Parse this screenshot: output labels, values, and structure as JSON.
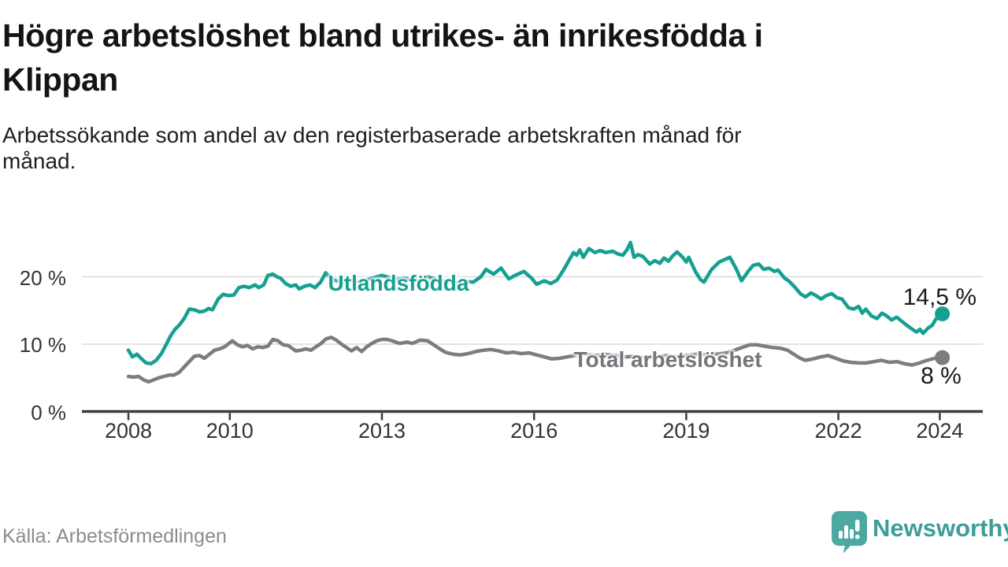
{
  "title": "Högre arbetslöshet bland utrikes- än inrikesfödda i Klippan",
  "title_lines": [
    "Högre arbetslöshet bland utrikes- än inrikesfödda i",
    "Klippan"
  ],
  "subtitle": "Arbetssökande som andel av den registerbaserade arbetskraften månad för månad.",
  "subtitle_lines": [
    "Arbetssökande som andel av den registerbaserade arbetskraften månad för",
    "månad."
  ],
  "source": "Källa: Arbetsförmedlingen",
  "branding": {
    "name": "Newsworthy",
    "bubble_color": "#4ca8a1",
    "text_color": "#3e9d98"
  },
  "colors": {
    "background": "#ffffff",
    "gridline": "#dadada",
    "axis": "#3b3b3b",
    "title": "#141414",
    "tick_label": "#333333"
  },
  "chart_data": {
    "type": "line",
    "title": "Högre arbetslöshet bland utrikes- än inrikesfödda i Klippan",
    "xlabel": "",
    "ylabel": "",
    "unit": "%",
    "x_axis": {
      "ticks": [
        2008,
        2010,
        2013,
        2016,
        2019,
        2022,
        2024
      ],
      "range": [
        2007.1,
        2024.85
      ]
    },
    "y_axis": {
      "ticks": [
        0,
        10,
        20
      ],
      "tick_labels": [
        "0 %",
        "10 %",
        "20 %"
      ],
      "range": [
        0,
        26
      ],
      "grid": true
    },
    "legend_position": "inline-labels",
    "series": [
      {
        "name": "Utlandsfödda",
        "color": "#16a091",
        "label_color": "#16a091",
        "end_label": "14,5 %",
        "end_value": 14.5,
        "points": [
          [
            2008.0,
            9.1
          ],
          [
            2008.08,
            8.1
          ],
          [
            2008.17,
            8.5
          ],
          [
            2008.25,
            7.9
          ],
          [
            2008.35,
            7.2
          ],
          [
            2008.45,
            7.1
          ],
          [
            2008.55,
            7.6
          ],
          [
            2008.65,
            8.6
          ],
          [
            2008.75,
            10.0
          ],
          [
            2008.83,
            11.2
          ],
          [
            2008.92,
            12.2
          ],
          [
            2009.0,
            12.8
          ],
          [
            2009.1,
            13.8
          ],
          [
            2009.2,
            15.2
          ],
          [
            2009.3,
            15.1
          ],
          [
            2009.4,
            14.8
          ],
          [
            2009.5,
            14.9
          ],
          [
            2009.58,
            15.3
          ],
          [
            2009.66,
            15.1
          ],
          [
            2009.77,
            16.7
          ],
          [
            2009.87,
            17.4
          ],
          [
            2009.97,
            17.2
          ],
          [
            2010.08,
            17.3
          ],
          [
            2010.18,
            18.4
          ],
          [
            2010.28,
            18.6
          ],
          [
            2010.38,
            18.4
          ],
          [
            2010.5,
            18.8
          ],
          [
            2010.57,
            18.4
          ],
          [
            2010.67,
            18.8
          ],
          [
            2010.75,
            20.2
          ],
          [
            2010.85,
            20.4
          ],
          [
            2010.93,
            20.0
          ],
          [
            2011.0,
            19.8
          ],
          [
            2011.1,
            19.0
          ],
          [
            2011.2,
            18.6
          ],
          [
            2011.3,
            18.8
          ],
          [
            2011.37,
            18.2
          ],
          [
            2011.47,
            18.6
          ],
          [
            2011.58,
            18.8
          ],
          [
            2011.68,
            18.4
          ],
          [
            2011.79,
            19.2
          ],
          [
            2011.89,
            20.6
          ],
          [
            2011.99,
            19.8
          ],
          [
            2012.1,
            19.4
          ],
          [
            2012.25,
            19.1
          ],
          [
            2012.4,
            19.5
          ],
          [
            2012.55,
            19.2
          ],
          [
            2012.7,
            19.5
          ],
          [
            2012.85,
            19.9
          ],
          [
            2013.0,
            20.2
          ],
          [
            2013.15,
            19.9
          ],
          [
            2013.3,
            19.6
          ],
          [
            2013.45,
            19.8
          ],
          [
            2013.6,
            19.5
          ],
          [
            2013.75,
            19.4
          ],
          [
            2013.9,
            20.0
          ],
          [
            2014.05,
            19.7
          ],
          [
            2014.2,
            19.4
          ],
          [
            2014.35,
            19.2
          ],
          [
            2014.5,
            19.1
          ],
          [
            2014.65,
            19.3
          ],
          [
            2014.8,
            19.2
          ],
          [
            2014.95,
            20.0
          ],
          [
            2015.05,
            21.1
          ],
          [
            2015.2,
            20.4
          ],
          [
            2015.35,
            21.3
          ],
          [
            2015.5,
            19.7
          ],
          [
            2015.65,
            20.3
          ],
          [
            2015.8,
            20.8
          ],
          [
            2015.95,
            19.8
          ],
          [
            2016.05,
            18.9
          ],
          [
            2016.2,
            19.4
          ],
          [
            2016.33,
            19.0
          ],
          [
            2016.45,
            19.5
          ],
          [
            2016.58,
            21.0
          ],
          [
            2016.7,
            22.6
          ],
          [
            2016.78,
            23.6
          ],
          [
            2016.84,
            23.2
          ],
          [
            2016.9,
            24.0
          ],
          [
            2016.97,
            22.9
          ],
          [
            2017.08,
            24.2
          ],
          [
            2017.2,
            23.6
          ],
          [
            2017.3,
            23.9
          ],
          [
            2017.42,
            23.6
          ],
          [
            2017.55,
            23.8
          ],
          [
            2017.65,
            23.4
          ],
          [
            2017.75,
            23.2
          ],
          [
            2017.83,
            24.0
          ],
          [
            2017.9,
            25.1
          ],
          [
            2017.97,
            22.9
          ],
          [
            2018.05,
            23.3
          ],
          [
            2018.15,
            23.0
          ],
          [
            2018.28,
            21.9
          ],
          [
            2018.38,
            22.4
          ],
          [
            2018.48,
            22.0
          ],
          [
            2018.56,
            22.8
          ],
          [
            2018.65,
            22.3
          ],
          [
            2018.72,
            23.0
          ],
          [
            2018.82,
            23.7
          ],
          [
            2018.93,
            22.9
          ],
          [
            2019.0,
            22.2
          ],
          [
            2019.05,
            22.9
          ],
          [
            2019.18,
            20.8
          ],
          [
            2019.28,
            19.6
          ],
          [
            2019.35,
            19.2
          ],
          [
            2019.5,
            21.1
          ],
          [
            2019.65,
            22.2
          ],
          [
            2019.86,
            22.9
          ],
          [
            2019.99,
            21.1
          ],
          [
            2020.09,
            19.4
          ],
          [
            2020.22,
            20.8
          ],
          [
            2020.32,
            21.7
          ],
          [
            2020.43,
            21.9
          ],
          [
            2020.53,
            21.1
          ],
          [
            2020.63,
            21.3
          ],
          [
            2020.74,
            20.8
          ],
          [
            2020.81,
            21.0
          ],
          [
            2020.94,
            19.8
          ],
          [
            2021.02,
            19.4
          ],
          [
            2021.15,
            18.4
          ],
          [
            2021.25,
            17.5
          ],
          [
            2021.35,
            17.0
          ],
          [
            2021.46,
            17.6
          ],
          [
            2021.56,
            17.2
          ],
          [
            2021.66,
            16.7
          ],
          [
            2021.76,
            17.2
          ],
          [
            2021.87,
            17.5
          ],
          [
            2021.97,
            16.9
          ],
          [
            2022.07,
            16.7
          ],
          [
            2022.2,
            15.4
          ],
          [
            2022.3,
            15.2
          ],
          [
            2022.4,
            15.6
          ],
          [
            2022.47,
            14.6
          ],
          [
            2022.54,
            15.2
          ],
          [
            2022.65,
            14.2
          ],
          [
            2022.76,
            13.8
          ],
          [
            2022.86,
            14.6
          ],
          [
            2022.95,
            14.2
          ],
          [
            2023.05,
            13.6
          ],
          [
            2023.15,
            14.0
          ],
          [
            2023.25,
            13.4
          ],
          [
            2023.35,
            12.8
          ],
          [
            2023.46,
            12.2
          ],
          [
            2023.54,
            11.8
          ],
          [
            2023.61,
            12.2
          ],
          [
            2023.67,
            11.6
          ],
          [
            2023.77,
            12.4
          ],
          [
            2023.85,
            12.8
          ],
          [
            2023.93,
            13.8
          ],
          [
            2024.05,
            14.5
          ]
        ]
      },
      {
        "name": "Total arbetslöshet",
        "color": "#7c7c81",
        "label_color": "#75757a",
        "end_label": "8 %",
        "end_value": 8.0,
        "points": [
          [
            2008.0,
            5.2
          ],
          [
            2008.1,
            5.1
          ],
          [
            2008.2,
            5.2
          ],
          [
            2008.3,
            4.7
          ],
          [
            2008.4,
            4.4
          ],
          [
            2008.5,
            4.7
          ],
          [
            2008.6,
            5.0
          ],
          [
            2008.7,
            5.2
          ],
          [
            2008.8,
            5.4
          ],
          [
            2008.9,
            5.4
          ],
          [
            2009.0,
            5.8
          ],
          [
            2009.1,
            6.6
          ],
          [
            2009.2,
            7.4
          ],
          [
            2009.3,
            8.2
          ],
          [
            2009.4,
            8.3
          ],
          [
            2009.5,
            7.9
          ],
          [
            2009.6,
            8.5
          ],
          [
            2009.7,
            9.1
          ],
          [
            2009.8,
            9.3
          ],
          [
            2009.9,
            9.6
          ],
          [
            2010.0,
            10.2
          ],
          [
            2010.05,
            10.5
          ],
          [
            2010.15,
            9.9
          ],
          [
            2010.25,
            9.6
          ],
          [
            2010.35,
            9.8
          ],
          [
            2010.45,
            9.3
          ],
          [
            2010.55,
            9.6
          ],
          [
            2010.65,
            9.5
          ],
          [
            2010.75,
            9.7
          ],
          [
            2010.85,
            10.7
          ],
          [
            2010.95,
            10.5
          ],
          [
            2011.05,
            9.9
          ],
          [
            2011.15,
            9.8
          ],
          [
            2011.3,
            9.0
          ],
          [
            2011.4,
            9.1
          ],
          [
            2011.5,
            9.3
          ],
          [
            2011.6,
            9.1
          ],
          [
            2011.7,
            9.6
          ],
          [
            2011.8,
            10.1
          ],
          [
            2011.9,
            10.8
          ],
          [
            2012.0,
            11.0
          ],
          [
            2012.1,
            10.6
          ],
          [
            2012.2,
            10.0
          ],
          [
            2012.3,
            9.5
          ],
          [
            2012.4,
            9.0
          ],
          [
            2012.5,
            9.5
          ],
          [
            2012.6,
            8.9
          ],
          [
            2012.7,
            9.6
          ],
          [
            2012.8,
            10.1
          ],
          [
            2012.9,
            10.5
          ],
          [
            2013.0,
            10.7
          ],
          [
            2013.1,
            10.7
          ],
          [
            2013.2,
            10.5
          ],
          [
            2013.35,
            10.1
          ],
          [
            2013.5,
            10.3
          ],
          [
            2013.6,
            10.1
          ],
          [
            2013.75,
            10.6
          ],
          [
            2013.9,
            10.5
          ],
          [
            2014.0,
            10.0
          ],
          [
            2014.1,
            9.5
          ],
          [
            2014.25,
            8.8
          ],
          [
            2014.4,
            8.5
          ],
          [
            2014.55,
            8.4
          ],
          [
            2014.7,
            8.6
          ],
          [
            2014.85,
            8.9
          ],
          [
            2015.0,
            9.1
          ],
          [
            2015.15,
            9.2
          ],
          [
            2015.3,
            9.0
          ],
          [
            2015.45,
            8.7
          ],
          [
            2015.6,
            8.8
          ],
          [
            2015.75,
            8.6
          ],
          [
            2015.9,
            8.7
          ],
          [
            2016.05,
            8.4
          ],
          [
            2016.2,
            8.1
          ],
          [
            2016.35,
            7.8
          ],
          [
            2016.5,
            7.9
          ],
          [
            2016.65,
            8.1
          ],
          [
            2016.8,
            8.3
          ],
          [
            2017.0,
            8.5
          ],
          [
            2017.2,
            8.3
          ],
          [
            2017.4,
            8.5
          ],
          [
            2017.6,
            8.3
          ],
          [
            2017.8,
            8.1
          ],
          [
            2018.0,
            8.2
          ],
          [
            2018.2,
            7.9
          ],
          [
            2018.4,
            8.1
          ],
          [
            2018.6,
            8.3
          ],
          [
            2018.8,
            8.1
          ],
          [
            2019.0,
            8.3
          ],
          [
            2019.2,
            8.5
          ],
          [
            2019.4,
            8.4
          ],
          [
            2019.6,
            8.5
          ],
          [
            2019.8,
            8.7
          ],
          [
            2019.95,
            9.1
          ],
          [
            2020.1,
            9.5
          ],
          [
            2020.25,
            9.9
          ],
          [
            2020.4,
            9.9
          ],
          [
            2020.55,
            9.7
          ],
          [
            2020.7,
            9.5
          ],
          [
            2020.85,
            9.4
          ],
          [
            2021.0,
            9.1
          ],
          [
            2021.1,
            8.6
          ],
          [
            2021.25,
            7.9
          ],
          [
            2021.35,
            7.6
          ],
          [
            2021.5,
            7.8
          ],
          [
            2021.65,
            8.1
          ],
          [
            2021.8,
            8.3
          ],
          [
            2021.95,
            7.9
          ],
          [
            2022.1,
            7.5
          ],
          [
            2022.25,
            7.3
          ],
          [
            2022.4,
            7.2
          ],
          [
            2022.55,
            7.2
          ],
          [
            2022.7,
            7.4
          ],
          [
            2022.85,
            7.6
          ],
          [
            2023.0,
            7.3
          ],
          [
            2023.15,
            7.4
          ],
          [
            2023.3,
            7.1
          ],
          [
            2023.45,
            6.9
          ],
          [
            2023.6,
            7.2
          ],
          [
            2023.75,
            7.6
          ],
          [
            2023.9,
            7.9
          ],
          [
            2024.05,
            8.0
          ]
        ]
      }
    ]
  }
}
